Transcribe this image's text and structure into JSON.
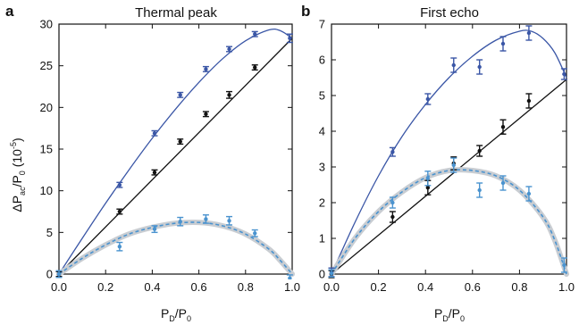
{
  "colors": {
    "blue": "#3a56a6",
    "black": "#111111",
    "light_blue": "#4a93cf",
    "band": "#c9cdd2"
  },
  "chart_data": [
    {
      "type": "scatter",
      "panel_letter": "a",
      "title": "Thermal peak",
      "xlabel": "P_D/P_0",
      "ylabel": "ΔP_ac/P_0 (10^-5)",
      "xlim": [
        0,
        1
      ],
      "ylim": [
        0,
        30
      ],
      "xticks": [
        "0.0",
        "0.2",
        "0.4",
        "0.6",
        "0.8",
        "1.0"
      ],
      "yticks": [
        "0",
        "5",
        "10",
        "15",
        "20",
        "25",
        "30"
      ],
      "series": [
        {
          "color": "blue",
          "x": [
            0.0,
            0.26,
            0.41,
            0.52,
            0.63,
            0.73,
            0.84,
            0.99
          ],
          "y": [
            0.0,
            10.7,
            16.9,
            21.5,
            24.6,
            27.0,
            28.8,
            28.3
          ],
          "err": [
            0.3,
            0.3,
            0.3,
            0.3,
            0.3,
            0.3,
            0.3,
            0.5
          ]
        },
        {
          "color": "black",
          "x": [
            0.0,
            0.26,
            0.41,
            0.52,
            0.63,
            0.73,
            0.84
          ],
          "y": [
            0.0,
            7.5,
            12.2,
            15.9,
            19.2,
            21.5,
            24.8
          ],
          "err": [
            0.3,
            0.3,
            0.3,
            0.3,
            0.3,
            0.4,
            0.3
          ]
        },
        {
          "color": "light_blue",
          "x": [
            0.0,
            0.26,
            0.41,
            0.52,
            0.63,
            0.73,
            0.84,
            0.99
          ],
          "y": [
            0.0,
            3.3,
            5.4,
            6.3,
            6.6,
            6.4,
            4.9,
            -0.5
          ],
          "err": [
            0.4,
            0.5,
            0.4,
            0.5,
            0.5,
            0.5,
            0.4,
            0.4
          ]
        }
      ],
      "fit_lines": [
        {
          "color": "blue",
          "x": [
            0.0,
            0.1,
            0.2,
            0.3,
            0.4,
            0.5,
            0.6,
            0.7,
            0.8,
            0.9,
            0.95,
            1.0
          ],
          "y": [
            0.0,
            4.3,
            8.5,
            12.5,
            16.3,
            19.8,
            23.0,
            25.8,
            28.0,
            29.3,
            29.2,
            28.3
          ]
        },
        {
          "color": "black",
          "x": [
            0.0,
            1.0
          ],
          "y": [
            0.0,
            28.3
          ]
        },
        {
          "color": "light_blue",
          "band": true,
          "x": [
            0.0,
            0.1,
            0.2,
            0.3,
            0.4,
            0.5,
            0.6,
            0.7,
            0.8,
            0.9,
            0.95,
            1.0
          ],
          "y": [
            0.0,
            1.9,
            3.5,
            4.8,
            5.6,
            6.1,
            6.2,
            5.8,
            4.8,
            3.0,
            1.6,
            0.0
          ]
        }
      ]
    },
    {
      "type": "scatter",
      "panel_letter": "b",
      "title": "First echo",
      "xlabel": "P_D/P_0",
      "xlim": [
        0,
        1
      ],
      "ylim": [
        0,
        7
      ],
      "xticks": [
        "0.0",
        "0.2",
        "0.4",
        "0.6",
        "0.8",
        "1.0"
      ],
      "yticks": [
        "0",
        "1",
        "2",
        "3",
        "4",
        "5",
        "6",
        "7"
      ],
      "series": [
        {
          "color": "blue",
          "x": [
            0.0,
            0.26,
            0.41,
            0.52,
            0.63,
            0.73,
            0.84,
            0.99
          ],
          "y": [
            0.05,
            3.42,
            4.9,
            5.85,
            5.8,
            6.45,
            6.75,
            5.6
          ],
          "err": [
            0.12,
            0.12,
            0.15,
            0.2,
            0.2,
            0.2,
            0.2,
            0.15
          ]
        },
        {
          "color": "black",
          "x": [
            0.0,
            0.26,
            0.41,
            0.52,
            0.63,
            0.73,
            0.84
          ],
          "y": [
            0.0,
            1.6,
            2.42,
            3.1,
            3.45,
            4.12,
            4.85
          ],
          "err": [
            0.1,
            0.15,
            0.2,
            0.18,
            0.15,
            0.2,
            0.2
          ]
        },
        {
          "color": "light_blue",
          "x": [
            0.0,
            0.26,
            0.41,
            0.52,
            0.63,
            0.73,
            0.84,
            0.99
          ],
          "y": [
            0.02,
            2.0,
            2.68,
            3.05,
            2.35,
            2.55,
            2.25,
            0.25
          ],
          "err": [
            0.1,
            0.15,
            0.2,
            0.2,
            0.2,
            0.2,
            0.2,
            0.2
          ]
        }
      ],
      "fit_lines": [
        {
          "color": "blue",
          "x": [
            0.0,
            0.1,
            0.2,
            0.3,
            0.4,
            0.5,
            0.6,
            0.7,
            0.8,
            0.85,
            0.9,
            0.95,
            1.0
          ],
          "y": [
            0.0,
            1.45,
            2.75,
            3.85,
            4.75,
            5.5,
            6.1,
            6.55,
            6.8,
            6.8,
            6.6,
            6.2,
            5.5
          ]
        },
        {
          "color": "black",
          "x": [
            0.0,
            1.0
          ],
          "y": [
            0.0,
            5.45
          ]
        },
        {
          "color": "light_blue",
          "band": true,
          "x": [
            0.0,
            0.1,
            0.2,
            0.3,
            0.4,
            0.5,
            0.6,
            0.7,
            0.8,
            0.9,
            0.95,
            1.0
          ],
          "y": [
            0.0,
            1.0,
            1.75,
            2.3,
            2.7,
            2.9,
            2.9,
            2.75,
            2.35,
            1.6,
            0.95,
            0.0
          ]
        }
      ]
    }
  ]
}
